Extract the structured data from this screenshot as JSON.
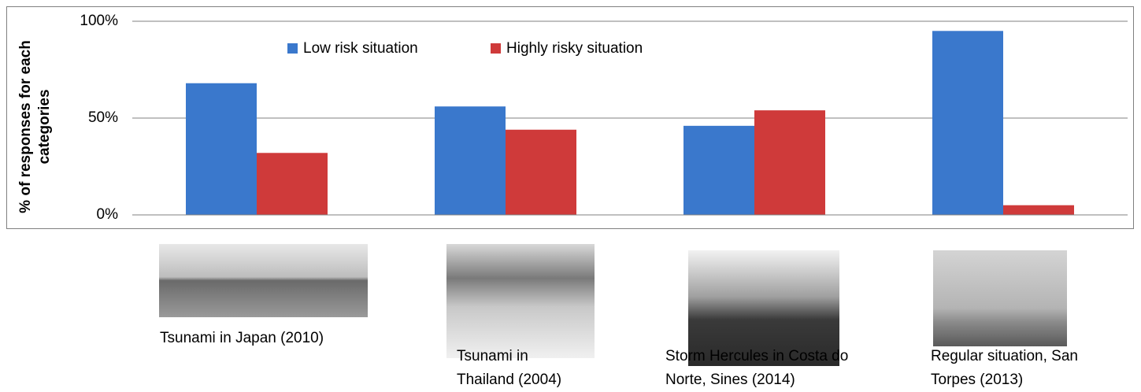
{
  "chart_data": {
    "type": "bar",
    "y_label": "% of responses for each categories",
    "categories": [
      "Tsunami in Japan (2010)",
      "Tsunami in Thailand (2004)",
      "Storm Hercules in Costa do Norte, Sines (2014)",
      "Regular situation, San Torpes (2013)"
    ],
    "series": [
      {
        "name": "Low risk situation",
        "color": "#3a78cc",
        "values": [
          68,
          56,
          46,
          95
        ]
      },
      {
        "name": "Highly risky situation",
        "color": "#cf3a3a",
        "values": [
          32,
          44,
          54,
          5
        ]
      }
    ],
    "ylim": [
      0,
      100
    ],
    "yticks": [
      {
        "value": 0,
        "label": "0%"
      },
      {
        "value": 50,
        "label": "50%"
      },
      {
        "value": 100,
        "label": "100%"
      }
    ],
    "grid": true,
    "legend": "top"
  }
}
